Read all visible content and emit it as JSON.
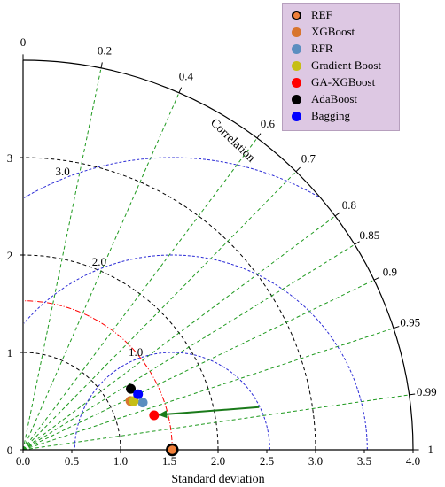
{
  "chart_data": {
    "type": "taylor_diagram",
    "xlabel": "Standard deviation",
    "correlation_label": "Correlation",
    "std_range": [
      0,
      4.0
    ],
    "std_ticks_x": [
      "0.0",
      "0.5",
      "1.0",
      "1.5",
      "2.0",
      "2.5",
      "3.0",
      "3.5",
      "4.0"
    ],
    "std_ticks_y": [
      "0",
      "1",
      "2",
      "3"
    ],
    "std_grid_arcs": [
      1,
      2,
      3
    ],
    "correlation_ticks": [
      "0",
      "0.2",
      "0.4",
      "0.6",
      "0.7",
      "0.8",
      "0.85",
      "0.9",
      "0.95",
      "0.99",
      "1"
    ],
    "correlation_values": [
      0,
      0.2,
      0.4,
      0.6,
      0.7,
      0.8,
      0.85,
      0.9,
      0.95,
      0.99,
      1
    ],
    "rmsd_arcs": [
      {
        "value": 1.0,
        "label": "1.0"
      },
      {
        "value": 2.0,
        "label": "2.0"
      },
      {
        "value": 3.0,
        "label": "3.0"
      }
    ],
    "reference_std": 1.53,
    "legend_position": "top-right",
    "series": [
      {
        "name": "REF",
        "std": 1.53,
        "correlation": 1.0,
        "color": "#f07f3a",
        "ring": true
      },
      {
        "name": "XGBoost",
        "std": 1.21,
        "correlation": 0.91,
        "color": "#d8752e"
      },
      {
        "name": "RFR",
        "std": 1.32,
        "correlation": 0.93,
        "color": "#5b8ec0"
      },
      {
        "name": "Gradient Boost",
        "std": 1.24,
        "correlation": 0.915,
        "color": "#c6be15"
      },
      {
        "name": "GA-XGBoost",
        "std": 1.39,
        "correlation": 0.967,
        "color": "#ff0000"
      },
      {
        "name": "AdaBoost",
        "std": 1.27,
        "correlation": 0.87,
        "color": "#000000"
      },
      {
        "name": "Bagging",
        "std": 1.31,
        "correlation": 0.9,
        "color": "#0000ff"
      }
    ],
    "annotation_arrow": {
      "from": {
        "std": 2.46,
        "correlation": 0.984
      },
      "to": {
        "std": 1.43,
        "correlation": 0.968
      },
      "color": "#1a7a1a"
    }
  }
}
